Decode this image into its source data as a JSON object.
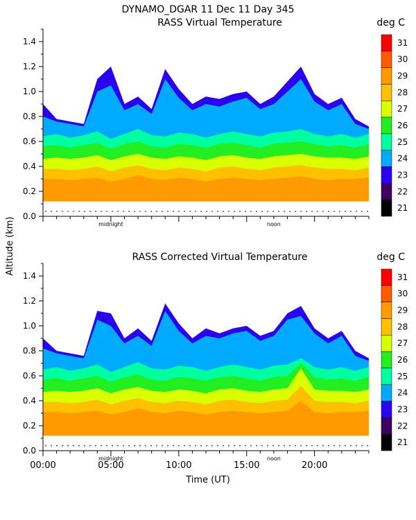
{
  "header": {
    "title": "DYNAMO_DGAR  11 Dec 11 Day 345"
  },
  "chart_data": [
    {
      "type": "heatmap",
      "title": "RASS Virtual Temperature",
      "units_label": "deg C",
      "ylabel": "Altitude (km)",
      "xlabel": "",
      "ylim": [
        0,
        1.5
      ],
      "xlim": [
        0,
        24
      ],
      "y_ticks": [
        "0.0",
        "0.2",
        "0.4",
        "0.6",
        "0.8",
        "1.0",
        "1.2",
        "1.4"
      ],
      "x_ticks": [],
      "annotations": [
        {
          "text": "midnight",
          "x": 5
        },
        {
          "text": "noon",
          "x": 17
        }
      ],
      "colorbar_labels": [
        "31",
        "30",
        "29",
        "28",
        "27",
        "26",
        "25",
        "24",
        "23",
        "22",
        "21"
      ],
      "layers": [
        {
          "temp": 29,
          "top": [
            0.3,
            0.3,
            0.29,
            0.3,
            0.31,
            0.28,
            0.3,
            0.33,
            0.3,
            0.29,
            0.31,
            0.3,
            0.28,
            0.3,
            0.31,
            0.3,
            0.29,
            0.3,
            0.31,
            0.32,
            0.3,
            0.29,
            0.3,
            0.3,
            0.31
          ]
        },
        {
          "temp": 28,
          "top": [
            0.38,
            0.38,
            0.37,
            0.38,
            0.4,
            0.36,
            0.39,
            0.41,
            0.38,
            0.37,
            0.39,
            0.38,
            0.36,
            0.39,
            0.4,
            0.38,
            0.37,
            0.39,
            0.4,
            0.41,
            0.39,
            0.38,
            0.38,
            0.37,
            0.39
          ]
        },
        {
          "temp": 27,
          "top": [
            0.46,
            0.47,
            0.46,
            0.47,
            0.49,
            0.45,
            0.48,
            0.5,
            0.47,
            0.46,
            0.48,
            0.47,
            0.45,
            0.48,
            0.49,
            0.47,
            0.46,
            0.48,
            0.49,
            0.5,
            0.48,
            0.47,
            0.47,
            0.46,
            0.48
          ]
        },
        {
          "temp": 26,
          "top": [
            0.56,
            0.57,
            0.55,
            0.57,
            0.59,
            0.54,
            0.58,
            0.6,
            0.56,
            0.55,
            0.58,
            0.57,
            0.55,
            0.58,
            0.59,
            0.57,
            0.55,
            0.58,
            0.59,
            0.6,
            0.58,
            0.56,
            0.57,
            0.55,
            0.58
          ]
        },
        {
          "temp": 25,
          "top": [
            0.64,
            0.66,
            0.63,
            0.65,
            0.68,
            0.62,
            0.66,
            0.7,
            0.65,
            0.64,
            0.67,
            0.66,
            0.63,
            0.66,
            0.68,
            0.66,
            0.64,
            0.67,
            0.68,
            0.7,
            0.66,
            0.64,
            0.66,
            0.63,
            0.66
          ]
        },
        {
          "temp": 24,
          "top": [
            0.8,
            0.76,
            0.74,
            0.72,
            1.0,
            1.05,
            0.85,
            0.9,
            0.82,
            1.1,
            0.95,
            0.85,
            0.9,
            0.88,
            0.92,
            0.95,
            0.86,
            0.9,
            1.0,
            1.1,
            0.92,
            0.85,
            0.9,
            0.74,
            0.7
          ]
        },
        {
          "temp": 23,
          "top": [
            0.9,
            0.78,
            0.76,
            0.74,
            1.1,
            1.2,
            0.9,
            0.96,
            0.86,
            1.18,
            1.02,
            0.9,
            0.96,
            0.94,
            0.98,
            1.0,
            0.9,
            0.96,
            1.08,
            1.2,
            0.98,
            0.9,
            0.95,
            0.78,
            0.72
          ]
        }
      ],
      "overlay_boost": []
    },
    {
      "type": "heatmap",
      "title": "RASS Corrected Virtual Temperature",
      "units_label": "deg C",
      "ylabel": "",
      "xlabel": "Time (UT)",
      "ylim": [
        0,
        1.5
      ],
      "xlim": [
        0,
        24
      ],
      "y_ticks": [
        "0.0",
        "0.2",
        "0.4",
        "0.6",
        "0.8",
        "1.0",
        "1.2",
        "1.4"
      ],
      "x_ticks": [
        {
          "label": "00:00",
          "x": 0
        },
        {
          "label": "05:00",
          "x": 5
        },
        {
          "label": "10:00",
          "x": 10
        },
        {
          "label": "15:00",
          "x": 15
        },
        {
          "label": "20:00",
          "x": 20
        }
      ],
      "annotations": [
        {
          "text": "midnight",
          "x": 5
        },
        {
          "text": "noon",
          "x": 17
        }
      ],
      "colorbar_labels": [
        "31",
        "30",
        "29",
        "28",
        "27",
        "26",
        "25",
        "24",
        "23",
        "22",
        "21"
      ],
      "layers": [
        {
          "temp": 29,
          "top": [
            0.31,
            0.31,
            0.3,
            0.31,
            0.32,
            0.29,
            0.31,
            0.34,
            0.31,
            0.3,
            0.32,
            0.31,
            0.29,
            0.31,
            0.32,
            0.31,
            0.3,
            0.31,
            0.32,
            0.4,
            0.31,
            0.3,
            0.31,
            0.31,
            0.32
          ]
        },
        {
          "temp": 28,
          "top": [
            0.39,
            0.39,
            0.38,
            0.39,
            0.41,
            0.37,
            0.4,
            0.42,
            0.39,
            0.38,
            0.4,
            0.39,
            0.37,
            0.4,
            0.41,
            0.39,
            0.38,
            0.4,
            0.41,
            0.52,
            0.4,
            0.39,
            0.39,
            0.38,
            0.4
          ]
        },
        {
          "temp": 27,
          "top": [
            0.47,
            0.48,
            0.47,
            0.48,
            0.5,
            0.46,
            0.49,
            0.51,
            0.48,
            0.47,
            0.49,
            0.48,
            0.46,
            0.49,
            0.5,
            0.48,
            0.47,
            0.49,
            0.5,
            0.66,
            0.49,
            0.48,
            0.48,
            0.47,
            0.49
          ]
        },
        {
          "temp": 26,
          "top": [
            0.57,
            0.58,
            0.56,
            0.58,
            0.6,
            0.55,
            0.59,
            0.61,
            0.57,
            0.56,
            0.59,
            0.58,
            0.56,
            0.59,
            0.6,
            0.58,
            0.56,
            0.59,
            0.6,
            0.7,
            0.59,
            0.57,
            0.58,
            0.56,
            0.59
          ]
        },
        {
          "temp": 25,
          "top": [
            0.65,
            0.67,
            0.64,
            0.66,
            0.69,
            0.63,
            0.67,
            0.71,
            0.66,
            0.65,
            0.68,
            0.67,
            0.64,
            0.67,
            0.69,
            0.67,
            0.65,
            0.68,
            0.69,
            0.74,
            0.67,
            0.65,
            0.67,
            0.64,
            0.67
          ]
        },
        {
          "temp": 24,
          "top": [
            0.82,
            0.78,
            0.76,
            0.74,
            1.05,
            1.0,
            0.86,
            0.92,
            0.84,
            1.12,
            0.96,
            0.86,
            0.92,
            0.9,
            0.94,
            0.96,
            0.88,
            0.92,
            1.05,
            1.08,
            0.94,
            0.86,
            0.92,
            0.76,
            0.72
          ]
        },
        {
          "temp": 23,
          "top": [
            0.9,
            0.8,
            0.78,
            0.76,
            1.12,
            1.1,
            0.9,
            0.98,
            0.88,
            1.18,
            1.02,
            0.9,
            0.98,
            0.94,
            0.98,
            1.0,
            0.92,
            0.96,
            1.1,
            1.16,
            0.98,
            0.9,
            0.96,
            0.8,
            0.74
          ]
        }
      ],
      "overlay_boost": []
    }
  ],
  "palette": {
    "31": "#ff0000",
    "30": "#ff5a00",
    "29": "#ff9a00",
    "28": "#ffc000",
    "27": "#d9ff00",
    "26": "#22ee22",
    "25": "#00ff9f",
    "24": "#00aaff",
    "23": "#2a00ee",
    "22": "#400060",
    "21": "#000000"
  }
}
